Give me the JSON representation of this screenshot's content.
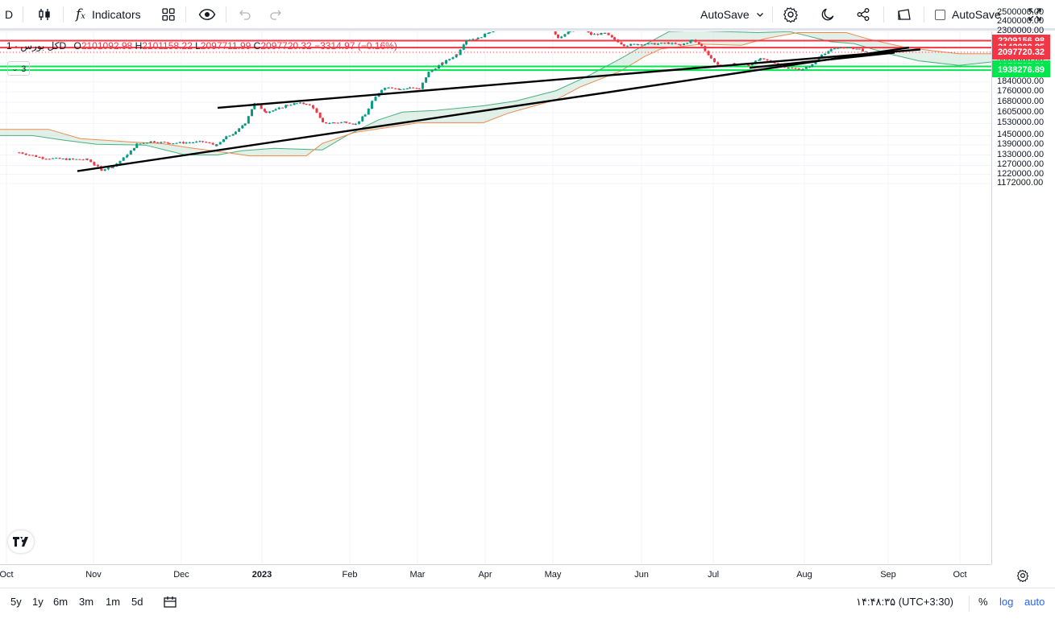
{
  "toolbar": {
    "interval": "D",
    "indicators_label": "Indicators",
    "autosave_label": "AutoSave",
    "autosave_checkbox_label": "AutoSave"
  },
  "legend": {
    "symbol": "کل بورس · 1D",
    "open_key": "O",
    "open": "2101092.98",
    "high_key": "H",
    "high": "2101158.22",
    "low_key": "L",
    "low": "2097711.99",
    "close_key": "C",
    "close": "2097720.32",
    "change": "−3314.97 (−0.16%)",
    "collapsed_count": "3"
  },
  "colors": {
    "up": "#26a69a",
    "up_candle": "#089981",
    "down": "#f23645",
    "resistance_line": "#f23645",
    "support_line": "#00e64d",
    "trend_line": "#000000",
    "cloud_bull": "#b7e4c7",
    "cloud_bear": "#f8c5c5"
  },
  "chart_data": {
    "type": "candlestick",
    "title": "",
    "price_axis_scale": "log",
    "price_ticks": [
      "2700000.00",
      "2500000.00",
      "2400000.00",
      "2300000.00",
      "2000000.00",
      "1840000.00",
      "1760000.00",
      "1680000.00",
      "1605000.00",
      "1530000.00",
      "1450000.00",
      "1390000.00",
      "1330000.00",
      "1270000.00",
      "1220000.00",
      "1172000.00"
    ],
    "time_ticks": [
      "Oct",
      "Nov",
      "Dec",
      "2023",
      "Feb",
      "Mar",
      "Apr",
      "May",
      "Jun",
      "Jul",
      "Aug",
      "Sep",
      "Oct"
    ],
    "horizontal_levels": [
      {
        "value": 2209156.98,
        "label": "2209156.98",
        "color": "#f23645"
      },
      {
        "value": 2142809.85,
        "label": "2142809.85",
        "color": "#f23645"
      },
      {
        "value": 1970727.59,
        "label": "1970727.59",
        "color": "#00e64d"
      },
      {
        "value": 1938276.89,
        "label": "1938276.89",
        "color": "#00e64d"
      }
    ],
    "last_price": {
      "value": 2097720.32,
      "label": "2097720.32"
    },
    "close_series": [
      [
        "Sep 25",
        1345000
      ],
      [
        "Oct 5",
        1312000
      ],
      [
        "Oct 15",
        1305000
      ],
      [
        "Oct 24",
        1303000
      ],
      [
        "Oct 27",
        1275000
      ],
      [
        "Oct 30",
        1245000
      ],
      [
        "Nov 4",
        1265000
      ],
      [
        "Nov 10",
        1330000
      ],
      [
        "Nov 14",
        1395000
      ],
      [
        "Nov 20",
        1412000
      ],
      [
        "Nov 28",
        1402000
      ],
      [
        "Dec 5",
        1405000
      ],
      [
        "Dec 12",
        1410000
      ],
      [
        "Dec 18",
        1388000
      ],
      [
        "Dec 22",
        1440000
      ],
      [
        "Dec 26",
        1470000
      ],
      [
        "Dec 30",
        1535000
      ],
      [
        "Jan 3",
        1670000
      ],
      [
        "Jan 8",
        1610000
      ],
      [
        "Jan 12",
        1625000
      ],
      [
        "Jan 17",
        1662000
      ],
      [
        "Jan 21",
        1672000
      ],
      [
        "Jan 25",
        1670000
      ],
      [
        "Jan 28",
        1640000
      ],
      [
        "Feb 1",
        1533000
      ],
      [
        "Feb 6",
        1535000
      ],
      [
        "Feb 11",
        1540000
      ],
      [
        "Feb 15",
        1525000
      ],
      [
        "Feb 19",
        1590000
      ],
      [
        "Feb 22",
        1685000
      ],
      [
        "Feb 26",
        1782000
      ],
      [
        "Mar 1",
        1800000
      ],
      [
        "Mar 6",
        1778000
      ],
      [
        "Mar 10",
        1795000
      ],
      [
        "Mar 14",
        1780000
      ],
      [
        "Mar 18",
        1920000
      ],
      [
        "Mar 24",
        2000000
      ],
      [
        "Mar 30",
        2080000
      ],
      [
        "Apr 3",
        2220000
      ],
      [
        "Apr 8",
        2232000
      ],
      [
        "Apr 13",
        2300000
      ],
      [
        "Apr 19",
        2370000
      ],
      [
        "Apr 25",
        2480000
      ],
      [
        "May 1",
        2520000
      ],
      [
        "May 4",
        2440000
      ],
      [
        "May 8",
        2360000
      ],
      [
        "May 12",
        2240000
      ],
      [
        "May 17",
        2300000
      ],
      [
        "May 22",
        2335000
      ],
      [
        "May 26",
        2270000
      ],
      [
        "Jun 1",
        2280000
      ],
      [
        "Jun 5",
        2220000
      ],
      [
        "Jun 9",
        2165000
      ],
      [
        "Jun 15",
        2175000
      ],
      [
        "Jun 22",
        2178000
      ],
      [
        "Jun 28",
        2185000
      ],
      [
        "Jul 3",
        2165000
      ],
      [
        "Jul 8",
        2215000
      ],
      [
        "Jul 12",
        2160000
      ],
      [
        "Jul 16",
        2040000
      ],
      [
        "Jul 20",
        1965000
      ],
      [
        "Jul 26",
        1995000
      ],
      [
        "Aug 1",
        1985000
      ],
      [
        "Aug 6",
        2035000
      ],
      [
        "Aug 12",
        2005000
      ],
      [
        "Aug 18",
        1955000
      ],
      [
        "Aug 24",
        1945000
      ],
      [
        "Aug 28",
        1985000
      ],
      [
        "Sep 1",
        2080000
      ],
      [
        "Sep 5",
        2120000
      ],
      [
        "Sep 9",
        2145000
      ],
      [
        "Sep 13",
        2140000
      ],
      [
        "Sep 17",
        2128000
      ],
      [
        "Sep 20",
        2097720
      ]
    ]
  },
  "bottombar": {
    "ranges": [
      "5y",
      "1y",
      "6m",
      "3m",
      "1m",
      "5d"
    ],
    "clock": "۱۴:۴۸:۳۵ (UTC+3:30)",
    "percent": "%",
    "log": "log",
    "auto": "auto"
  }
}
